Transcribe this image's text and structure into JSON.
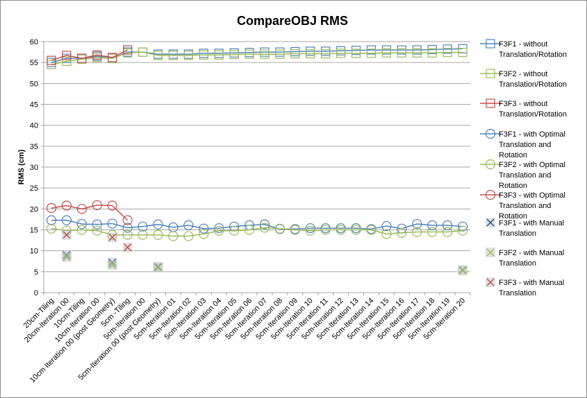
{
  "chart_data": {
    "type": "line",
    "title": "CompareOBJ RMS",
    "xlabel": "",
    "ylabel": "RMS (cm)",
    "ylim": [
      0,
      60
    ],
    "yticks": [
      0,
      5,
      10,
      15,
      20,
      25,
      30,
      35,
      40,
      45,
      50,
      55,
      60
    ],
    "grid": true,
    "legend_position": "right",
    "categories": [
      "20cm-Tiling",
      "20cm-Iteration 00",
      "10cm-Tiling",
      "10cm-Iteration 00",
      "10cm Iteration 00 (post Geometry)",
      "5cm -Tiling",
      "5cm-Iteration 00",
      "5cm-Iteration 00 (post Geometry)",
      "5cm-Iteration 01",
      "5cm-Iteration 02",
      "5cm-Iteration 03",
      "5cm-Iteration 04",
      "5cm-Iteration 05",
      "5cm-Iteration 06",
      "5cm-Iteration 07",
      "5cm-Iteration 08",
      "5cm-Iteration 09",
      "5cm-Iteration 10",
      "5cm-Iteration 11",
      "5cm-Iteration 12",
      "5cm-Iteration 13",
      "5cm-Iteration 14",
      "5cm-Iteration 15",
      "5cm-Iteration 16",
      "5cm-Iteration 17",
      "5cm-Iteration 18",
      "5cm-Iteration 19",
      "5cm-Iteration 20"
    ],
    "series": [
      {
        "name": "F3F1 - without Translation/Rotation",
        "legend_lines": [
          "F3F1 - without",
          "Translation/Rotation"
        ],
        "color": "#4f81bd",
        "marker": "square",
        "line": true,
        "values": [
          55.0,
          56.0,
          56.0,
          56.5,
          56.0,
          57.5,
          57.5,
          57.0,
          57.0,
          57.0,
          57.2,
          57.2,
          57.3,
          57.4,
          57.5,
          57.5,
          57.6,
          57.7,
          57.7,
          57.8,
          57.9,
          58.0,
          58.0,
          58.0,
          58.0,
          58.1,
          58.2,
          58.3
        ]
      },
      {
        "name": "F3F2 - without Translation/Rotation",
        "legend_lines": [
          "F3F2 - without",
          "Translation/Rotation"
        ],
        "color": "#9bbb59",
        "marker": "square",
        "line": true,
        "values": [
          54.5,
          55.3,
          55.8,
          56.2,
          56.0,
          57.3,
          57.5,
          56.7,
          56.7,
          56.7,
          56.8,
          56.8,
          56.9,
          57.0,
          57.0,
          57.0,
          57.1,
          57.1,
          57.1,
          57.2,
          57.2,
          57.2,
          57.3,
          57.3,
          57.3,
          57.3,
          57.4,
          57.4
        ]
      },
      {
        "name": "F3F3 - without Translation/Rotation",
        "legend_lines": [
          "F3F3 - without",
          "Translation/Rotation"
        ],
        "color": "#c0504d",
        "marker": "square",
        "line": true,
        "values": [
          55.5,
          56.7,
          56.0,
          56.8,
          56.2,
          58.0,
          null,
          null,
          null,
          null,
          null,
          null,
          null,
          null,
          null,
          null,
          null,
          null,
          null,
          null,
          null,
          null,
          null,
          null,
          null,
          null,
          null,
          null
        ]
      },
      {
        "name": "F3F1 - with Optimal Translation and Rotation",
        "legend_lines": [
          "F3F1 - with Optimal",
          "Translation and",
          "Rotation"
        ],
        "color": "#4f81bd",
        "marker": "circle",
        "line": true,
        "values": [
          17.3,
          17.3,
          16.4,
          16.3,
          16.5,
          15.5,
          15.8,
          16.3,
          15.6,
          16.1,
          15.3,
          15.4,
          15.8,
          16.1,
          16.3,
          15.2,
          15.2,
          15.4,
          15.4,
          15.4,
          15.4,
          15.2,
          15.9,
          15.3,
          16.4,
          16.1,
          16.1,
          15.8
        ]
      },
      {
        "name": "F3F2 - with Optimal Translation and Rotation",
        "legend_lines": [
          "F3F2 - with Optimal",
          "Translation and",
          "Rotation"
        ],
        "color": "#9bbb59",
        "marker": "circle",
        "line": true,
        "values": [
          15.3,
          14.8,
          15.0,
          14.8,
          13.8,
          13.8,
          13.8,
          13.8,
          13.5,
          13.5,
          14.0,
          14.8,
          14.8,
          15.0,
          15.5,
          15.3,
          15.0,
          14.8,
          15.0,
          15.0,
          15.0,
          15.0,
          14.0,
          14.3,
          14.5,
          14.5,
          14.5,
          14.8
        ]
      },
      {
        "name": "F3F3 - with Optimal Translation and Rotation",
        "legend_lines": [
          "F3F3 - with Optimal",
          "Translation and",
          "Rotation"
        ],
        "color": "#c0504d",
        "marker": "circle",
        "line": true,
        "values": [
          20.2,
          20.8,
          20.0,
          20.9,
          20.8,
          17.3,
          null,
          null,
          null,
          null,
          null,
          null,
          null,
          null,
          null,
          null,
          null,
          null,
          null,
          null,
          null,
          null,
          null,
          null,
          null,
          null,
          null,
          null
        ]
      },
      {
        "name": "F3F1 - with Manual Translation",
        "legend_lines": [
          "F3F1 - with Manual",
          "Translation"
        ],
        "color": "#1f4e8c",
        "marker": "x",
        "line": false,
        "values": [
          null,
          9.0,
          null,
          null,
          7.2,
          null,
          null,
          6.2,
          null,
          null,
          null,
          null,
          null,
          null,
          null,
          null,
          null,
          null,
          null,
          null,
          null,
          null,
          null,
          null,
          null,
          null,
          null,
          5.4
        ]
      },
      {
        "name": "F3F2 - with Manual Translation",
        "legend_lines": [
          "F3F2 - with Manual",
          "Translation"
        ],
        "color": "#9bbb59",
        "marker": "x",
        "line": false,
        "values": [
          null,
          8.5,
          null,
          null,
          6.6,
          null,
          null,
          6.0,
          null,
          null,
          null,
          null,
          null,
          null,
          null,
          null,
          null,
          null,
          null,
          null,
          null,
          null,
          null,
          null,
          null,
          null,
          null,
          5.3
        ]
      },
      {
        "name": "F3F3 - with Manual Translation",
        "legend_lines": [
          "F3F3 - with Manual",
          "Translation"
        ],
        "color": "#c0504d",
        "marker": "x",
        "line": false,
        "values": [
          null,
          13.8,
          null,
          null,
          13.2,
          10.8,
          null,
          null,
          null,
          null,
          null,
          null,
          null,
          null,
          null,
          null,
          null,
          null,
          null,
          null,
          null,
          null,
          null,
          null,
          null,
          null,
          null,
          null
        ]
      }
    ]
  }
}
